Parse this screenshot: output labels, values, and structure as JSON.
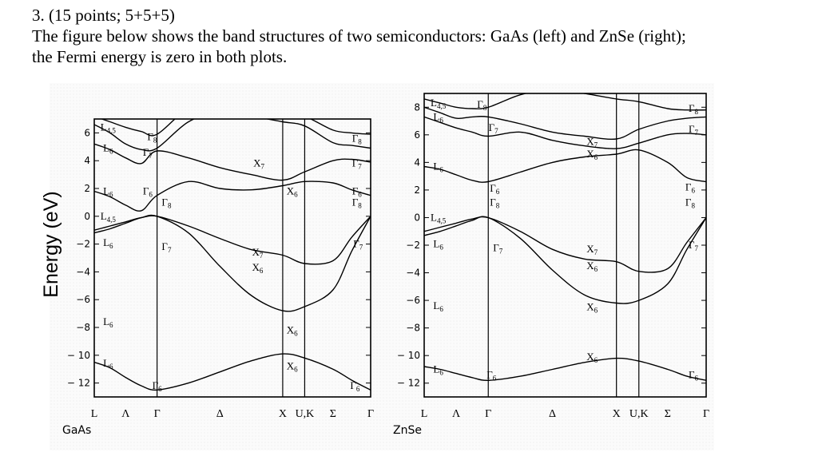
{
  "question": {
    "number": "3. (15 points; 5+5+5)",
    "line1": "The figure below shows the band structures of two semiconductors: GaAs (left) and ZnSe (right);",
    "line2": "the Fermi energy is zero in both plots."
  },
  "chart_data": [
    {
      "type": "line",
      "material": "GaAs",
      "ylabel": "Energy (eV)",
      "ylim": [
        -13,
        7
      ],
      "yticks": [
        6,
        4,
        2,
        0,
        -2,
        -4,
        -6,
        -8,
        -10,
        -12
      ],
      "ytick_labels": [
        "6",
        "4",
        "2",
        "0",
        "−2",
        "−4",
        "−6",
        "−8",
        "− 10",
        "− 12"
      ],
      "k_points": [
        "L",
        "Λ",
        "Γ",
        "Δ",
        "X",
        "U,K",
        "Σ",
        "Γ"
      ],
      "k_positions": [
        0,
        0.5,
        1,
        2,
        3,
        3.35,
        3.8,
        4.4
      ],
      "vertical_lines_at": [
        "Γ",
        "X",
        "U,K"
      ],
      "series": [
        {
          "x": [
            0,
            0.25,
            0.5,
            0.75,
            1,
            1.5,
            2,
            2.5,
            3,
            3.35,
            3.8,
            4.1,
            4.4
          ],
          "values": [
            -10.5,
            -10.9,
            -11.6,
            -12.2,
            -12.5,
            -12.0,
            -11.2,
            -10.4,
            -9.9,
            -10.2,
            -11.0,
            -11.8,
            -12.5
          ]
        },
        {
          "x": [
            0,
            0.25,
            0.5,
            0.75,
            1,
            1.5,
            2,
            2.5,
            3,
            3.35,
            3.8,
            4.1,
            4.4
          ],
          "values": [
            -1.2,
            -0.9,
            -0.5,
            -0.1,
            0,
            -1.2,
            -3.6,
            -5.7,
            -6.8,
            -6.5,
            -5.3,
            -2.5,
            0
          ]
        },
        {
          "x": [
            0,
            0.25,
            0.5,
            0.75,
            1,
            1.5,
            2,
            2.5,
            3,
            3.35,
            3.8,
            4.1,
            4.4
          ],
          "values": [
            -1.0,
            -0.7,
            -0.4,
            -0.1,
            0,
            -0.7,
            -1.6,
            -2.4,
            -2.8,
            -3.4,
            -3.2,
            -1.5,
            0
          ]
        },
        {
          "x": [
            0,
            0.25,
            0.5,
            0.75,
            1,
            1.5,
            2,
            2.5,
            3,
            3.35,
            3.8,
            4.1,
            4.4
          ],
          "values": [
            1.8,
            1.4,
            0.8,
            0.4,
            1.5,
            2.5,
            2.0,
            1.9,
            2.2,
            2.5,
            2.4,
            1.9,
            1.5
          ]
        },
        {
          "x": [
            0,
            0.25,
            0.5,
            0.75,
            1,
            1.5,
            2,
            2.5,
            3,
            3.35,
            3.8,
            4.1,
            4.4
          ],
          "values": [
            5.2,
            4.8,
            4.2,
            3.8,
            4.7,
            4.2,
            3.5,
            3.0,
            2.6,
            3.2,
            4.0,
            4.1,
            3.9
          ]
        },
        {
          "x": [
            0,
            0.25,
            0.5,
            0.75,
            1,
            1.5,
            2,
            2.5,
            3,
            3.35,
            3.8,
            4.1,
            4.4
          ],
          "values": [
            6.6,
            6.0,
            5.2,
            4.8,
            4.9,
            6.8,
            7.5,
            7.2,
            6.8,
            6.5,
            5.3,
            5.1,
            4.9
          ]
        },
        {
          "x": [
            0,
            0.25,
            0.5,
            0.75,
            1,
            1.5,
            2,
            2.5,
            3,
            3.35,
            3.8,
            4.1,
            4.4
          ],
          "values": [
            7.2,
            6.8,
            6.4,
            6.1,
            5.9,
            7.8,
            8.5,
            8.0,
            7.5,
            7.2,
            6.2,
            6.0,
            5.9
          ]
        }
      ],
      "labels": [
        {
          "text": "L4,5",
          "k": 0.22,
          "e": 6.4
        },
        {
          "text": "L6",
          "k": 0.22,
          "e": 4.9
        },
        {
          "text": "Γ8",
          "k": 0.92,
          "e": 5.7
        },
        {
          "text": "Γ7",
          "k": 0.85,
          "e": 4.6
        },
        {
          "text": "X7",
          "k": 2.62,
          "e": 3.8
        },
        {
          "text": "Γ8",
          "k": 4.18,
          "e": 5.6
        },
        {
          "text": "Γ7",
          "k": 4.18,
          "e": 3.8
        },
        {
          "text": "L6",
          "k": 0.22,
          "e": 1.8
        },
        {
          "text": "Γ6",
          "k": 0.85,
          "e": 1.8
        },
        {
          "text": "Γ8",
          "k": 1.15,
          "e": 1.0
        },
        {
          "text": "X6",
          "k": 3.15,
          "e": 1.8
        },
        {
          "text": "Γ6",
          "k": 4.18,
          "e": 1.8
        },
        {
          "text": "Γ8",
          "k": 4.18,
          "e": 1.0
        },
        {
          "text": "L4,5",
          "k": 0.22,
          "e": 0.0
        },
        {
          "text": "Γ7",
          "k": 1.15,
          "e": -2.2
        },
        {
          "text": "L6",
          "k": 0.22,
          "e": -1.9
        },
        {
          "text": "X7",
          "k": 2.6,
          "e": -2.6
        },
        {
          "text": "X6",
          "k": 2.6,
          "e": -3.7
        },
        {
          "text": "Γ7",
          "k": 4.2,
          "e": -2.0
        },
        {
          "text": "L6",
          "k": 0.22,
          "e": -7.6
        },
        {
          "text": "X6",
          "k": 3.15,
          "e": -8.2
        },
        {
          "text": "L6",
          "k": 0.22,
          "e": -10.6
        },
        {
          "text": "X6",
          "k": 3.15,
          "e": -10.8
        },
        {
          "text": "Γ6",
          "k": 1.0,
          "e": -12.2
        },
        {
          "text": "Γ6",
          "k": 4.15,
          "e": -12.2
        }
      ]
    },
    {
      "type": "line",
      "material": "ZnSe",
      "ylim": [
        -13,
        9
      ],
      "yticks": [
        8,
        6,
        4,
        2,
        0,
        -2,
        -4,
        -6,
        -8,
        -10,
        -12
      ],
      "ytick_labels": [
        "8",
        "6",
        "4",
        "2",
        "0",
        "−2",
        "−4",
        "−6",
        "−8",
        "− 10",
        "− 12"
      ],
      "k_points": [
        "L",
        "Λ",
        "Γ",
        "Δ",
        "X",
        "U,K",
        "Σ",
        "Γ"
      ],
      "k_positions": [
        0,
        0.5,
        1,
        2,
        3,
        3.35,
        3.8,
        4.4
      ],
      "vertical_lines_at": [
        "Γ",
        "X",
        "U,K"
      ],
      "series": [
        {
          "x": [
            0,
            0.25,
            0.5,
            0.75,
            1,
            1.5,
            2,
            2.5,
            3,
            3.35,
            3.8,
            4.1,
            4.4
          ],
          "values": [
            -10.8,
            -11.0,
            -11.3,
            -11.6,
            -11.8,
            -11.5,
            -11.0,
            -10.5,
            -10.2,
            -10.4,
            -11.0,
            -11.5,
            -11.8
          ]
        },
        {
          "x": [
            0,
            0.25,
            0.5,
            0.75,
            1,
            1.5,
            2,
            2.5,
            3,
            3.35,
            3.8,
            4.1,
            4.4
          ],
          "values": [
            -1.3,
            -1.0,
            -0.6,
            -0.2,
            0,
            -1.5,
            -3.8,
            -5.6,
            -6.2,
            -6.0,
            -4.8,
            -2.3,
            0
          ]
        },
        {
          "x": [
            0,
            0.25,
            0.5,
            0.75,
            1,
            1.5,
            2,
            2.5,
            3,
            3.35,
            3.8,
            4.1,
            4.4
          ],
          "values": [
            -1.0,
            -0.7,
            -0.4,
            -0.1,
            0,
            -1.0,
            -2.3,
            -3.0,
            -3.2,
            -3.9,
            -3.7,
            -1.8,
            0
          ]
        },
        {
          "x": [
            0,
            0.25,
            0.5,
            0.75,
            1,
            1.5,
            2,
            2.5,
            3,
            3.35,
            3.8,
            4.1,
            4.4
          ],
          "values": [
            3.7,
            3.5,
            3.1,
            2.7,
            2.6,
            3.3,
            4.0,
            4.4,
            4.6,
            4.9,
            4.0,
            2.9,
            2.6
          ]
        },
        {
          "x": [
            0,
            0.25,
            0.5,
            0.75,
            1,
            1.5,
            2,
            2.5,
            3,
            3.35,
            3.8,
            4.1,
            4.4
          ],
          "values": [
            7.3,
            6.9,
            6.5,
            6.2,
            5.9,
            6.2,
            5.6,
            5.2,
            5.0,
            5.4,
            6.0,
            6.1,
            6.0
          ]
        },
        {
          "x": [
            0,
            0.25,
            0.5,
            0.75,
            1,
            1.5,
            2,
            2.5,
            3,
            3.35,
            3.8,
            4.1,
            4.4
          ],
          "values": [
            8.0,
            7.6,
            7.2,
            7.3,
            7.3,
            6.8,
            6.2,
            5.9,
            5.7,
            6.4,
            7.0,
            7.2,
            7.3
          ]
        },
        {
          "x": [
            0,
            0.25,
            0.5,
            0.75,
            1,
            1.5,
            2,
            2.5,
            3,
            3.35,
            3.8,
            4.1,
            4.4
          ],
          "values": [
            8.6,
            8.3,
            8.0,
            7.9,
            8.0,
            8.9,
            9.3,
            9.0,
            8.6,
            8.4,
            7.9,
            7.8,
            7.8
          ]
        }
      ],
      "labels": [
        {
          "text": "L4,5",
          "k": 0.22,
          "e": 8.3
        },
        {
          "text": "L6",
          "k": 0.22,
          "e": 7.3
        },
        {
          "text": "Γ8",
          "k": 0.9,
          "e": 8.2
        },
        {
          "text": "Γ7",
          "k": 1.08,
          "e": 6.5
        },
        {
          "text": "X7",
          "k": 2.62,
          "e": 5.5
        },
        {
          "text": "X6",
          "k": 2.62,
          "e": 4.6
        },
        {
          "text": "Γ8",
          "k": 4.2,
          "e": 7.9
        },
        {
          "text": "Γ7",
          "k": 4.2,
          "e": 6.4
        },
        {
          "text": "L6",
          "k": 0.22,
          "e": 3.7
        },
        {
          "text": "Γ6",
          "k": 1.1,
          "e": 2.1
        },
        {
          "text": "Γ8",
          "k": 1.1,
          "e": 1.1
        },
        {
          "text": "Γ6",
          "k": 4.15,
          "e": 2.2
        },
        {
          "text": "Γ8",
          "k": 4.15,
          "e": 1.1
        },
        {
          "text": "L4,5",
          "k": 0.22,
          "e": 0.0
        },
        {
          "text": "L6",
          "k": 0.22,
          "e": -1.9
        },
        {
          "text": "Γ7",
          "k": 1.15,
          "e": -2.2
        },
        {
          "text": "X7",
          "k": 2.62,
          "e": -2.3
        },
        {
          "text": "X6",
          "k": 2.62,
          "e": -3.5
        },
        {
          "text": "Γ7",
          "k": 4.2,
          "e": -2.0
        },
        {
          "text": "L6",
          "k": 0.22,
          "e": -6.4
        },
        {
          "text": "X6",
          "k": 2.62,
          "e": -6.5
        },
        {
          "text": "L6",
          "k": 0.22,
          "e": -11.0
        },
        {
          "text": "X6",
          "k": 2.62,
          "e": -10.1
        },
        {
          "text": "Γ6",
          "k": 1.05,
          "e": -11.4
        },
        {
          "text": "Γ6",
          "k": 4.2,
          "e": -11.4
        }
      ]
    }
  ]
}
